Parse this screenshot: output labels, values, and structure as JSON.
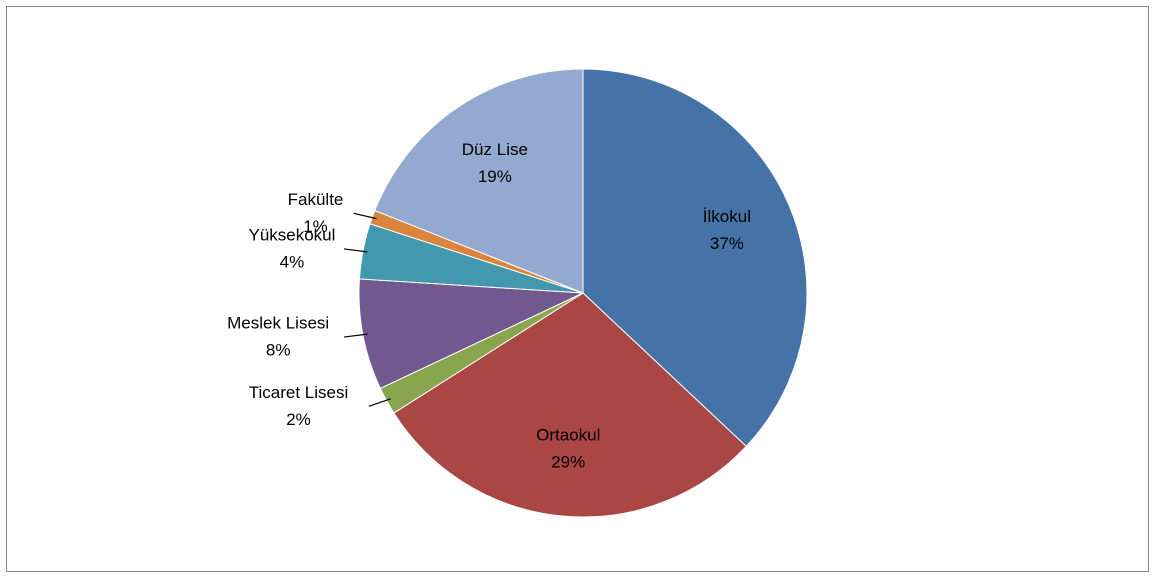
{
  "chart_data": {
    "type": "pie",
    "categories": [
      "İlkokul",
      "Ortaokul",
      "Ticaret Lisesi",
      "Meslek Lisesi",
      "Yüksekokul",
      "Fakülte",
      "Düz Lise"
    ],
    "values": [
      37,
      29,
      2,
      8,
      4,
      1,
      19
    ],
    "value_labels": [
      "37%",
      "29%",
      "2%",
      "8%",
      "4%",
      "1%",
      "19%"
    ],
    "colors": [
      "#4572a7",
      "#aa4643",
      "#89a54e",
      "#71588f",
      "#4198af",
      "#db843d",
      "#93a9cf"
    ]
  }
}
